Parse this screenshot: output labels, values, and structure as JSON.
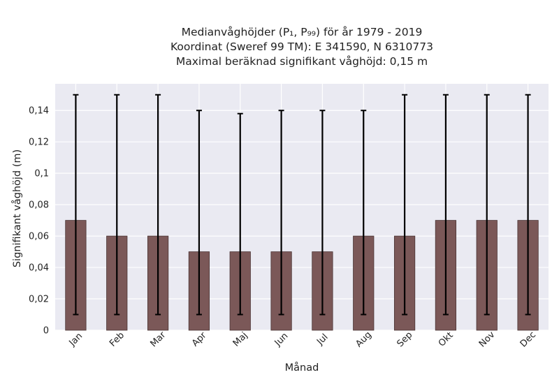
{
  "chart_data": {
    "type": "bar",
    "title_lines": [
      "Medianvåghöjder (P₁, P₉₉) för år 1979 - 2019",
      "Koordinat (Sweref 99 TM): E 341590, N 6310773",
      "Maximal beräknad signifikant våghöjd: 0,15 m"
    ],
    "xlabel": "Månad",
    "ylabel": "Signifikant våghöjd (m)",
    "categories": [
      "Jan",
      "Feb",
      "Mar",
      "Apr",
      "Maj",
      "Jun",
      "Jul",
      "Aug",
      "Sep",
      "Okt",
      "Nov",
      "Dec"
    ],
    "series": [
      {
        "values": [
          0.07,
          0.06,
          0.06,
          0.05,
          0.05,
          0.05,
          0.05,
          0.06,
          0.06,
          0.07,
          0.07,
          0.07
        ],
        "error_low": [
          0.01,
          0.01,
          0.01,
          0.01,
          0.01,
          0.01,
          0.01,
          0.01,
          0.01,
          0.01,
          0.01,
          0.01
        ],
        "error_high": [
          0.15,
          0.15,
          0.15,
          0.14,
          0.138,
          0.14,
          0.14,
          0.14,
          0.15,
          0.15,
          0.15,
          0.15
        ]
      }
    ],
    "ylim": [
      0,
      0.157
    ],
    "yticks": [
      0,
      0.02,
      0.04,
      0.06,
      0.08,
      0.1,
      0.12,
      0.14
    ],
    "ytick_labels": [
      "0",
      "0,02",
      "0,04",
      "0,06",
      "0,08",
      "0,1",
      "0,12",
      "0,14"
    ],
    "grid": true,
    "colors": {
      "bar": "#7b5858",
      "bar_edge": "#4a3434",
      "error": "#000000",
      "background": "#eaeaf2",
      "grid": "#ffffff"
    }
  }
}
